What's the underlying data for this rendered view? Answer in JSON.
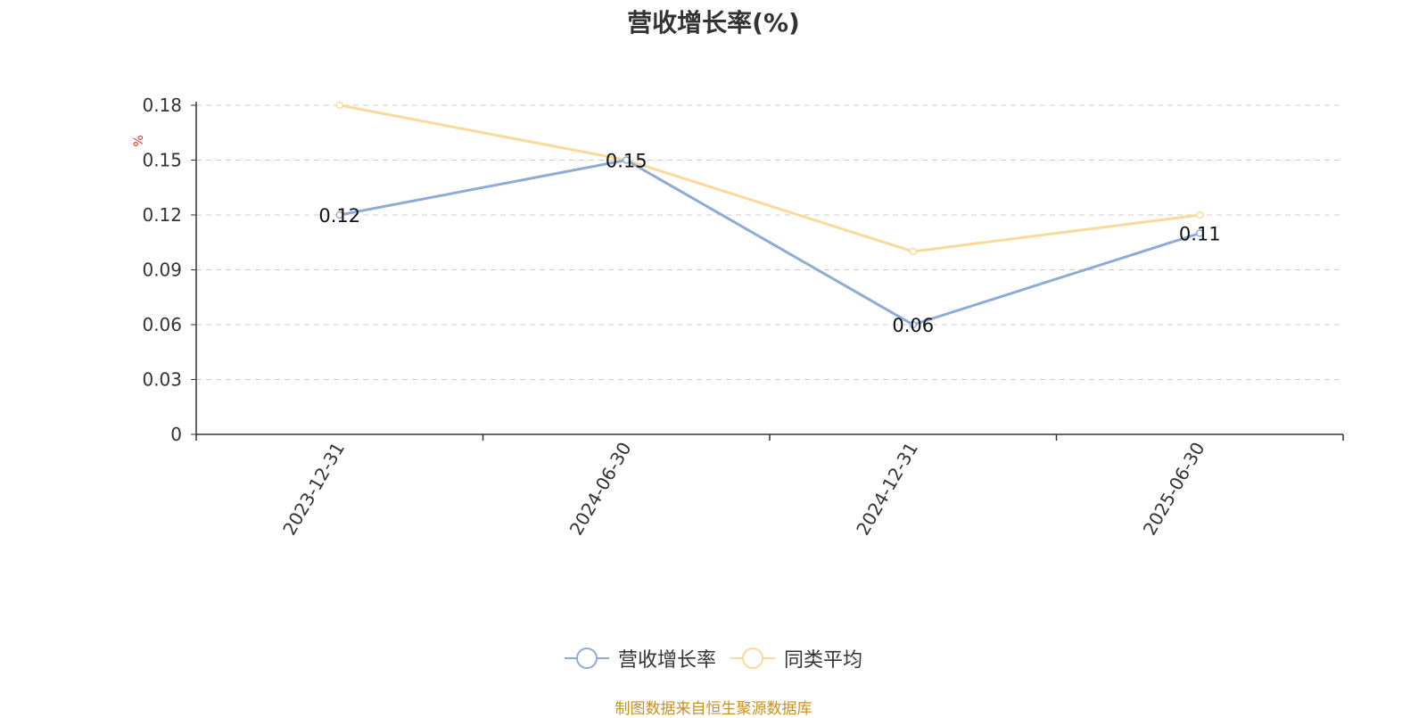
{
  "chart_data": {
    "type": "line",
    "title": "营收增长率(%)",
    "ylabel": "%",
    "categories": [
      "2023-12-31",
      "2024-06-30",
      "2024-12-31",
      "2025-06-30"
    ],
    "yticks": [
      "0",
      "0.03",
      "0.06",
      "0.09",
      "0.12",
      "0.15",
      "0.18"
    ],
    "ylim": [
      0,
      0.18
    ],
    "grid": true,
    "legend_position": "bottom-center",
    "series": [
      {
        "name": "营收增长率",
        "values": [
          0.12,
          0.15,
          0.06,
          0.11
        ],
        "color": "#8eabd6",
        "labels": [
          "0.12",
          "0.15",
          "0.06",
          "0.11"
        ]
      },
      {
        "name": "同类平均",
        "values": [
          0.18,
          0.15,
          0.1,
          0.12
        ],
        "color": "#fbd99a"
      }
    ]
  },
  "source_text": "制图数据来自恒生聚源数据库"
}
